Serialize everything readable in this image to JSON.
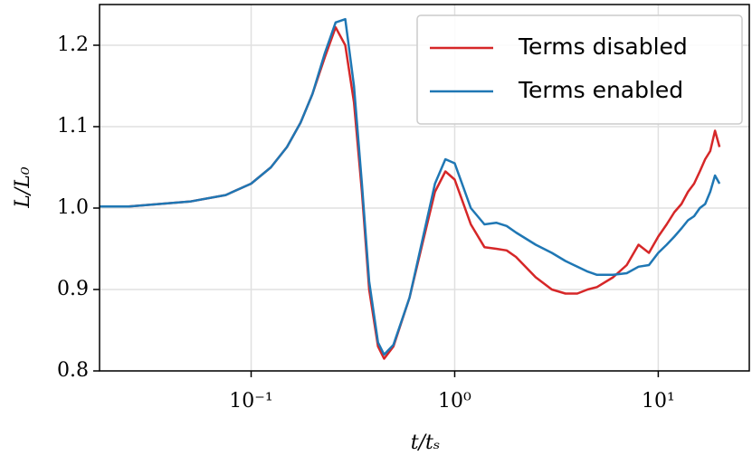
{
  "chart_data": {
    "type": "line",
    "xlabel": "t/tₛ",
    "ylabel": "L/L₀",
    "xscale": "log",
    "grid": true,
    "legend_position": "upper right",
    "xlim": [
      0.018,
      28
    ],
    "ylim": [
      0.8,
      1.25
    ],
    "xticks": [
      {
        "value": 0.1,
        "label": "10⁻¹"
      },
      {
        "value": 1,
        "label": "10⁰"
      },
      {
        "value": 10,
        "label": "10¹"
      }
    ],
    "yticks": [
      0.8,
      0.9,
      {
        "value": 1,
        "label": "1.0"
      },
      1.1,
      1.2
    ],
    "x": [
      0.018,
      0.025,
      0.05,
      0.075,
      0.1,
      0.125,
      0.15,
      0.175,
      0.2,
      0.23,
      0.26,
      0.29,
      0.32,
      0.35,
      0.38,
      0.42,
      0.45,
      0.5,
      0.6,
      0.7,
      0.8,
      0.9,
      1.0,
      1.2,
      1.4,
      1.6,
      1.8,
      2.0,
      2.5,
      3,
      3.5,
      4,
      4.5,
      5,
      6,
      7,
      8,
      9,
      10,
      11,
      12,
      13,
      14,
      15,
      16,
      17,
      18,
      19,
      20
    ],
    "series": [
      {
        "name": "Terms disabled",
        "color": "#d62728",
        "values": [
          1.002,
          1.002,
          1.008,
          1.016,
          1.03,
          1.05,
          1.075,
          1.105,
          1.14,
          1.185,
          1.222,
          1.2,
          1.13,
          1.02,
          0.9,
          0.83,
          0.815,
          0.83,
          0.89,
          0.96,
          1.02,
          1.045,
          1.035,
          0.98,
          0.952,
          0.95,
          0.948,
          0.94,
          0.915,
          0.9,
          0.895,
          0.895,
          0.9,
          0.903,
          0.915,
          0.93,
          0.955,
          0.945,
          0.965,
          0.98,
          0.995,
          1.005,
          1.02,
          1.03,
          1.045,
          1.06,
          1.07,
          1.095,
          1.075
        ]
      },
      {
        "name": "Terms enabled",
        "color": "#1f77b4",
        "values": [
          1.002,
          1.002,
          1.008,
          1.016,
          1.03,
          1.05,
          1.075,
          1.105,
          1.14,
          1.19,
          1.228,
          1.232,
          1.15,
          1.03,
          0.91,
          0.835,
          0.82,
          0.832,
          0.89,
          0.965,
          1.03,
          1.06,
          1.055,
          1.0,
          0.98,
          0.982,
          0.978,
          0.97,
          0.955,
          0.945,
          0.935,
          0.928,
          0.922,
          0.918,
          0.918,
          0.92,
          0.928,
          0.93,
          0.945,
          0.955,
          0.965,
          0.975,
          0.985,
          0.99,
          1.0,
          1.005,
          1.02,
          1.04,
          1.03
        ]
      }
    ]
  }
}
